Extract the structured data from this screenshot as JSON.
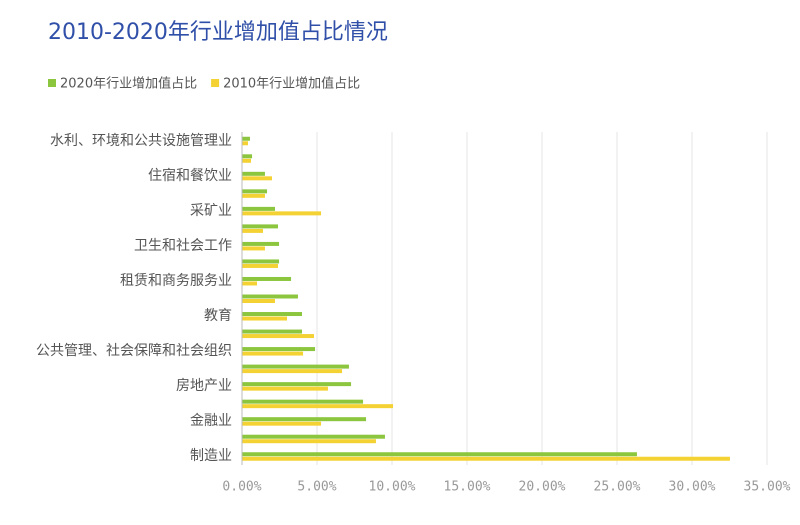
{
  "chart_data": {
    "type": "hbar",
    "title": "2010-2020年行业增加值占比情况",
    "categories": [
      "水利、环境和公共设施管理业",
      null,
      "住宿和餐饮业",
      null,
      "采矿业",
      null,
      "卫生和社会工作",
      null,
      "租赁和商务服务业",
      null,
      "教育",
      null,
      "公共管理、社会保障和社会组织",
      null,
      "房地产业",
      null,
      "金融业",
      null,
      "制造业"
    ],
    "series": [
      {
        "name": "2020年行业增加值占比",
        "color": "#8cc63e",
        "values": [
          0.53,
          0.67,
          1.53,
          1.67,
          2.2,
          2.4,
          2.47,
          2.47,
          3.27,
          3.73,
          4.0,
          4.0,
          4.87,
          7.13,
          7.27,
          8.07,
          8.27,
          9.53,
          26.33
        ]
      },
      {
        "name": "2010年行业增加值占比",
        "color": "#f4d234",
        "values": [
          0.4,
          0.6,
          2.0,
          1.53,
          5.27,
          1.4,
          1.53,
          2.4,
          1.0,
          2.2,
          3.0,
          4.8,
          4.07,
          6.67,
          5.73,
          10.07,
          5.27,
          8.93,
          32.53
        ]
      }
    ],
    "xlim": [
      0,
      35
    ],
    "xticks": [
      {
        "value": 0,
        "label": "0.00%"
      },
      {
        "value": 5,
        "label": "5.00%"
      },
      {
        "value": 10,
        "label": "10.00%"
      },
      {
        "value": 15,
        "label": "15.00%"
      },
      {
        "value": 20,
        "label": "20.00%"
      },
      {
        "value": 25,
        "label": "25.00%"
      },
      {
        "value": 30,
        "label": "30.00%"
      },
      {
        "value": 35,
        "label": "35.00%"
      }
    ],
    "grid": true
  }
}
